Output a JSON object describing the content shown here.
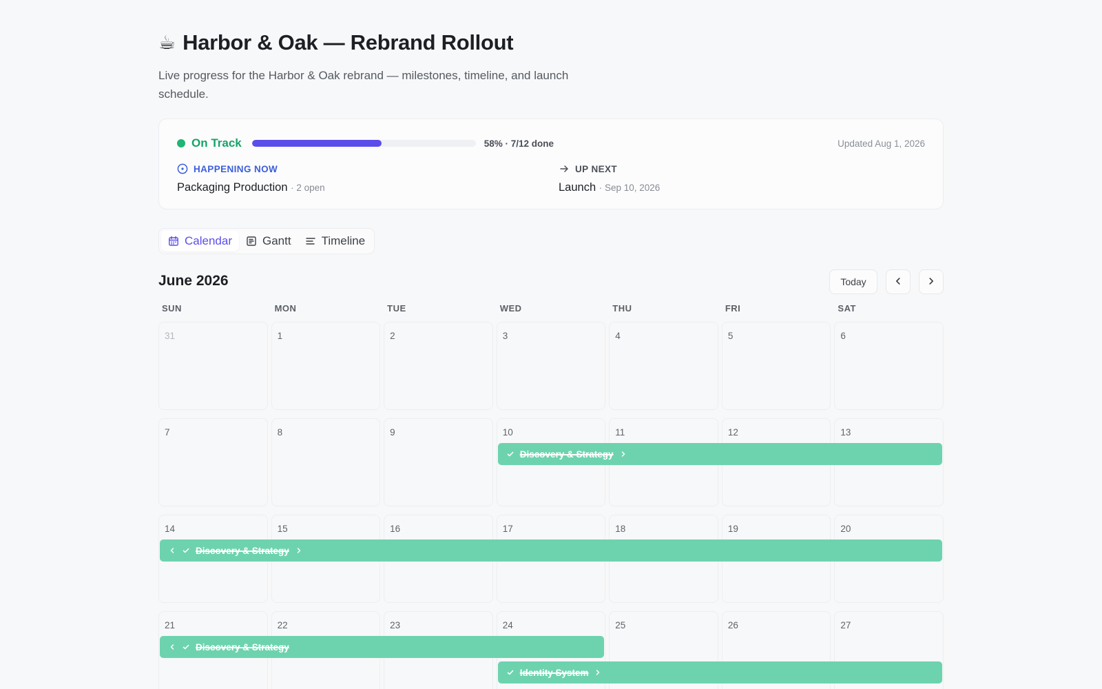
{
  "header": {
    "emoji": "☕",
    "title": "Harbor & Oak — Rebrand Rollout",
    "subtitle": "Live progress for the Harbor & Oak rebrand — milestones, timeline, and launch schedule."
  },
  "status": {
    "label": "On Track",
    "progress_fraction": 0.58,
    "progress_text": "58% · 7/12 done",
    "updated": "Updated Aug 1, 2026",
    "now_heading": "HAPPENING NOW",
    "now_title": "Packaging Production",
    "now_meta": "· 2 open",
    "next_heading": "UP NEXT",
    "next_title": "Launch",
    "next_meta": "· Sep 10, 2026",
    "colors": {
      "on_track": "#16a36a",
      "progress": "#5b4de9",
      "now": "#3b5fd9"
    }
  },
  "tabs": [
    {
      "label": "Calendar",
      "icon": "calendar-icon",
      "active": true
    },
    {
      "label": "Gantt",
      "icon": "gantt-icon",
      "active": false
    },
    {
      "label": "Timeline",
      "icon": "timeline-icon",
      "active": false
    }
  ],
  "calendar": {
    "month_title": "June 2026",
    "today_label": "Today",
    "weekdays": [
      "SUN",
      "MON",
      "TUE",
      "WED",
      "THU",
      "FRI",
      "SAT"
    ],
    "weeks": [
      [
        "31",
        "1",
        "2",
        "3",
        "4",
        "5",
        "6"
      ],
      [
        "7",
        "8",
        "9",
        "10",
        "11",
        "12",
        "13"
      ],
      [
        "14",
        "15",
        "16",
        "17",
        "18",
        "19",
        "20"
      ],
      [
        "21",
        "22",
        "23",
        "24",
        "25",
        "26",
        "27"
      ]
    ],
    "muted_days": [
      "31"
    ],
    "event_color": "#6dd3ae",
    "events": [
      {
        "label": "Discovery & Strategy",
        "week": 1,
        "start_day": 3,
        "end_day": 6,
        "lane": 0,
        "continues_before": false,
        "continues_after": true,
        "done": true
      },
      {
        "label": "Discovery & Strategy",
        "week": 2,
        "start_day": 0,
        "end_day": 6,
        "lane": 0,
        "continues_before": true,
        "continues_after": true,
        "done": true
      },
      {
        "label": "Discovery & Strategy",
        "week": 3,
        "start_day": 0,
        "end_day": 3,
        "lane": 0,
        "continues_before": true,
        "continues_after": false,
        "done": true
      },
      {
        "label": "Identity System",
        "week": 3,
        "start_day": 3,
        "end_day": 6,
        "lane": 1,
        "continues_before": false,
        "continues_after": true,
        "done": true
      }
    ]
  }
}
